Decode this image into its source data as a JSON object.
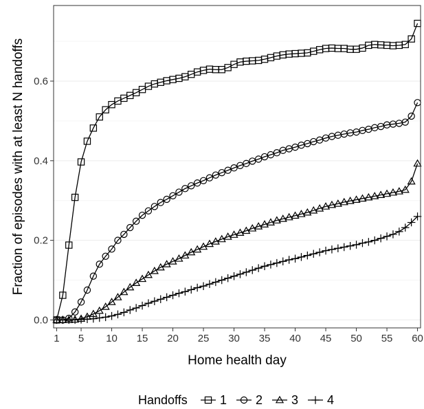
{
  "chart_data": {
    "type": "line",
    "title": "",
    "xlabel": "Home health day",
    "ylabel": "Fraction of episodes with at least N handoffs",
    "xlim": [
      0.5,
      60.5
    ],
    "ylim": [
      -0.02,
      0.79
    ],
    "x_ticks": [
      1,
      5,
      10,
      15,
      20,
      25,
      30,
      35,
      40,
      45,
      50,
      55,
      60
    ],
    "y_ticks": [
      0.0,
      0.2,
      0.4,
      0.6
    ],
    "y_tick_labels": [
      "0.0",
      "0.2",
      "0.4",
      "0.6"
    ],
    "grid": true,
    "legend": {
      "title": "Handoffs",
      "position": "bottom"
    },
    "x": [
      1,
      2,
      3,
      4,
      5,
      6,
      7,
      8,
      9,
      10,
      11,
      12,
      13,
      14,
      15,
      16,
      17,
      18,
      19,
      20,
      21,
      22,
      23,
      24,
      25,
      26,
      27,
      28,
      29,
      30,
      31,
      32,
      33,
      34,
      35,
      36,
      37,
      38,
      39,
      40,
      41,
      42,
      43,
      44,
      45,
      46,
      47,
      48,
      49,
      50,
      51,
      52,
      53,
      54,
      55,
      56,
      57,
      58,
      59,
      60
    ],
    "series": [
      {
        "name": "1",
        "marker": "square",
        "values": [
          0.0,
          0.062,
          0.188,
          0.308,
          0.397,
          0.449,
          0.482,
          0.51,
          0.528,
          0.541,
          0.55,
          0.557,
          0.564,
          0.571,
          0.579,
          0.587,
          0.593,
          0.597,
          0.601,
          0.604,
          0.607,
          0.611,
          0.617,
          0.623,
          0.627,
          0.63,
          0.629,
          0.629,
          0.634,
          0.642,
          0.648,
          0.65,
          0.651,
          0.652,
          0.655,
          0.659,
          0.663,
          0.666,
          0.668,
          0.669,
          0.67,
          0.671,
          0.675,
          0.679,
          0.682,
          0.683,
          0.682,
          0.682,
          0.68,
          0.68,
          0.683,
          0.69,
          0.692,
          0.691,
          0.69,
          0.689,
          0.69,
          0.692,
          0.706,
          0.745
        ]
      },
      {
        "name": "2",
        "marker": "circle",
        "values": [
          0.0,
          0.0,
          0.004,
          0.02,
          0.045,
          0.075,
          0.11,
          0.14,
          0.16,
          0.178,
          0.2,
          0.215,
          0.232,
          0.248,
          0.263,
          0.274,
          0.285,
          0.295,
          0.303,
          0.312,
          0.321,
          0.33,
          0.337,
          0.344,
          0.35,
          0.357,
          0.364,
          0.37,
          0.376,
          0.382,
          0.388,
          0.393,
          0.399,
          0.404,
          0.41,
          0.415,
          0.42,
          0.426,
          0.43,
          0.434,
          0.439,
          0.443,
          0.448,
          0.452,
          0.457,
          0.461,
          0.464,
          0.467,
          0.47,
          0.472,
          0.476,
          0.479,
          0.483,
          0.486,
          0.49,
          0.492,
          0.494,
          0.497,
          0.512,
          0.546
        ]
      },
      {
        "name": "3",
        "marker": "triangle",
        "values": [
          0.0,
          0.0,
          0.0,
          0.001,
          0.003,
          0.008,
          0.015,
          0.023,
          0.033,
          0.045,
          0.057,
          0.07,
          0.082,
          0.093,
          0.103,
          0.113,
          0.123,
          0.132,
          0.14,
          0.147,
          0.154,
          0.162,
          0.17,
          0.177,
          0.184,
          0.191,
          0.197,
          0.203,
          0.209,
          0.214,
          0.219,
          0.224,
          0.23,
          0.235,
          0.24,
          0.245,
          0.25,
          0.254,
          0.258,
          0.262,
          0.266,
          0.27,
          0.275,
          0.28,
          0.285,
          0.289,
          0.292,
          0.296,
          0.299,
          0.302,
          0.305,
          0.308,
          0.311,
          0.314,
          0.317,
          0.32,
          0.323,
          0.327,
          0.348,
          0.393
        ]
      },
      {
        "name": "4",
        "marker": "plus",
        "values": [
          0.0,
          0.0,
          0.0,
          0.0,
          0.001,
          0.002,
          0.003,
          0.005,
          0.007,
          0.01,
          0.014,
          0.019,
          0.025,
          0.03,
          0.036,
          0.042,
          0.047,
          0.052,
          0.057,
          0.062,
          0.067,
          0.071,
          0.076,
          0.081,
          0.085,
          0.09,
          0.095,
          0.1,
          0.105,
          0.11,
          0.115,
          0.12,
          0.125,
          0.13,
          0.135,
          0.139,
          0.143,
          0.147,
          0.151,
          0.154,
          0.158,
          0.162,
          0.166,
          0.17,
          0.174,
          0.177,
          0.18,
          0.183,
          0.186,
          0.189,
          0.193,
          0.196,
          0.2,
          0.205,
          0.21,
          0.215,
          0.222,
          0.232,
          0.245,
          0.26
        ]
      }
    ]
  }
}
